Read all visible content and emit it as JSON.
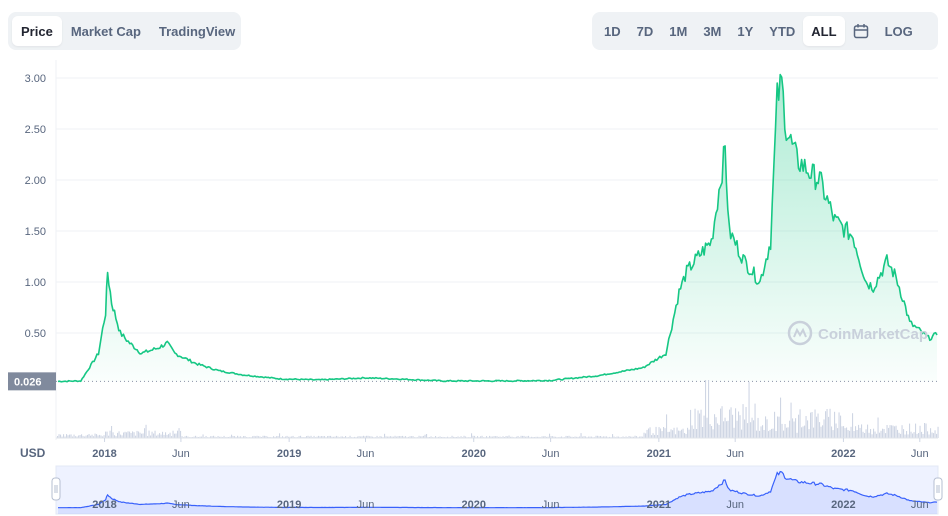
{
  "view_tabs": {
    "items": [
      "Price",
      "Market Cap",
      "TradingView"
    ],
    "active": 0
  },
  "range_tabs": {
    "items": [
      "1D",
      "7D",
      "1M",
      "3M",
      "1Y",
      "YTD",
      "ALL"
    ],
    "active": "ALL",
    "log_label": "LOG"
  },
  "icons": {
    "calendar": "calendar-icon",
    "logo": "coinmarketcap-logo-icon"
  },
  "watermark": "CoinMarketCap",
  "colors": {
    "line": "#16c784",
    "fill": "#16c784",
    "volume": "#cfd6e4",
    "navigator_fill": "#eef2ff",
    "navigator_line": "#3861fb",
    "price_tag_bg": "#808a9d"
  },
  "chart_data": {
    "type": "line",
    "y_axis_label": "USD",
    "yticks": [
      "3.00",
      "2.50",
      "2.00",
      "1.50",
      "1.00",
      "0.50"
    ],
    "ylim": [
      0,
      3.0
    ],
    "baseline_value": "0.026",
    "xticks": [
      "2018",
      "Jun",
      "2019",
      "Jun",
      "2020",
      "Jun",
      "2021",
      "Jun",
      "2022",
      "Jun"
    ],
    "grid": true,
    "series": [
      {
        "x": [
          "2017-10-01",
          "2017-11-15",
          "2017-12-20",
          "2018-01-03",
          "2018-01-07",
          "2018-01-15",
          "2018-02-01",
          "2018-02-20",
          "2018-03-15",
          "2018-04-15",
          "2018-05-05",
          "2018-05-20",
          "2018-07-01",
          "2018-08-15",
          "2018-10-01",
          "2018-12-15",
          "2019-03-01",
          "2019-06-01",
          "2019-08-01",
          "2019-11-01",
          "2020-01-15",
          "2020-03-12",
          "2020-06-01",
          "2020-09-01",
          "2020-12-01",
          "2021-01-15",
          "2021-02-10",
          "2021-02-25",
          "2021-03-20",
          "2021-04-15",
          "2021-05-12",
          "2021-05-20",
          "2021-06-20",
          "2021-07-20",
          "2021-08-10",
          "2021-08-23",
          "2021-09-01",
          "2021-09-10",
          "2021-10-01",
          "2021-11-01",
          "2021-11-15",
          "2021-12-15",
          "2022-01-20",
          "2022-02-15",
          "2022-03-01",
          "2022-03-28",
          "2022-04-15",
          "2022-05-01",
          "2022-05-12",
          "2022-05-25",
          "2022-06-18",
          "2022-07-05"
        ],
        "values": [
          0.026,
          0.03,
          0.3,
          0.7,
          1.1,
          0.8,
          0.5,
          0.4,
          0.3,
          0.35,
          0.4,
          0.3,
          0.2,
          0.13,
          0.09,
          0.05,
          0.04,
          0.06,
          0.05,
          0.03,
          0.03,
          0.03,
          0.035,
          0.08,
          0.16,
          0.3,
          0.9,
          1.1,
          1.25,
          1.4,
          2.3,
          1.5,
          1.2,
          1.0,
          1.4,
          2.8,
          2.95,
          2.5,
          2.2,
          2.05,
          2.0,
          1.6,
          1.45,
          1.0,
          0.95,
          1.2,
          1.05,
          0.8,
          0.6,
          0.55,
          0.45,
          0.48
        ]
      }
    ],
    "volume_note": "relative trading volume bars shown, no axis"
  },
  "navigator": {
    "xticks": [
      "2018",
      "Jun",
      "2019",
      "Jun",
      "2020",
      "Jun",
      "2021",
      "Jun",
      "2022",
      "Jun"
    ]
  }
}
